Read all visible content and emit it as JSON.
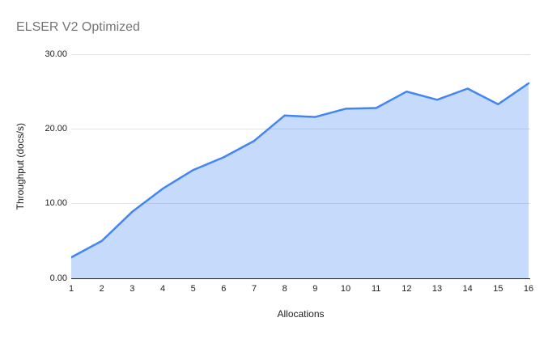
{
  "chart_data": {
    "type": "area",
    "title": "ELSER V2 Optimized",
    "xlabel": "Allocations",
    "ylabel": "Throughput (docs/s)",
    "categories": [
      "1",
      "2",
      "3",
      "4",
      "5",
      "6",
      "7",
      "8",
      "9",
      "10",
      "11",
      "12",
      "13",
      "14",
      "15",
      "16"
    ],
    "values": [
      2.8,
      5.0,
      8.9,
      12.0,
      14.5,
      16.2,
      18.4,
      21.8,
      21.6,
      22.7,
      22.8,
      25.0,
      23.9,
      25.4,
      23.3,
      26.1
    ],
    "ylim": [
      0,
      30
    ],
    "y_ticks": [
      {
        "value": 0,
        "label": "0.00"
      },
      {
        "value": 10,
        "label": "10.00"
      },
      {
        "value": 20,
        "label": "20.00"
      },
      {
        "value": 30,
        "label": "30.00"
      }
    ],
    "grid": true,
    "legend": "none",
    "colors": {
      "line": "#4285f4",
      "fill": "rgba(66,133,244,0.3)",
      "gridline": "#e3e3e3",
      "axis_line": "#212121",
      "title": "#757575",
      "tick_label": "#202124",
      "axis_title": "#202124"
    }
  }
}
